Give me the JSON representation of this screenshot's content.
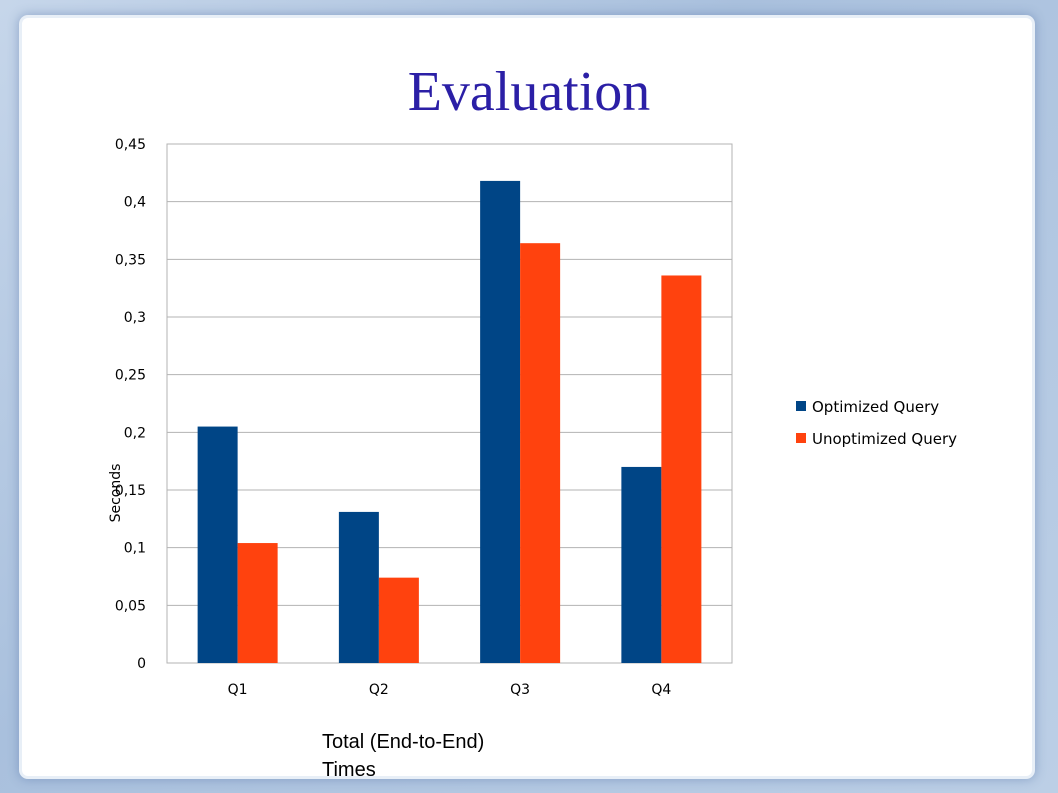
{
  "slide": {
    "title": "Evaluation",
    "caption_line1": "Total (End-to-End)",
    "caption_line2": "Times"
  },
  "chart_data": {
    "type": "bar",
    "title": "",
    "xlabel": "",
    "ylabel": "Seconds",
    "categories": [
      "Q1",
      "Q2",
      "Q3",
      "Q4"
    ],
    "ylim": [
      0,
      0.45
    ],
    "yticks": [
      "0",
      "0,05",
      "0,1",
      "0,15",
      "0,2",
      "0,25",
      "0,3",
      "0,35",
      "0,4",
      "0,45"
    ],
    "series": [
      {
        "name": "Optimized Query",
        "color": "#004586",
        "values": [
          0.205,
          0.131,
          0.418,
          0.17
        ]
      },
      {
        "name": "Unoptimized Query",
        "color": "#ff420e",
        "values": [
          0.104,
          0.074,
          0.364,
          0.336
        ]
      }
    ],
    "legend_position": "right",
    "grid": true
  }
}
